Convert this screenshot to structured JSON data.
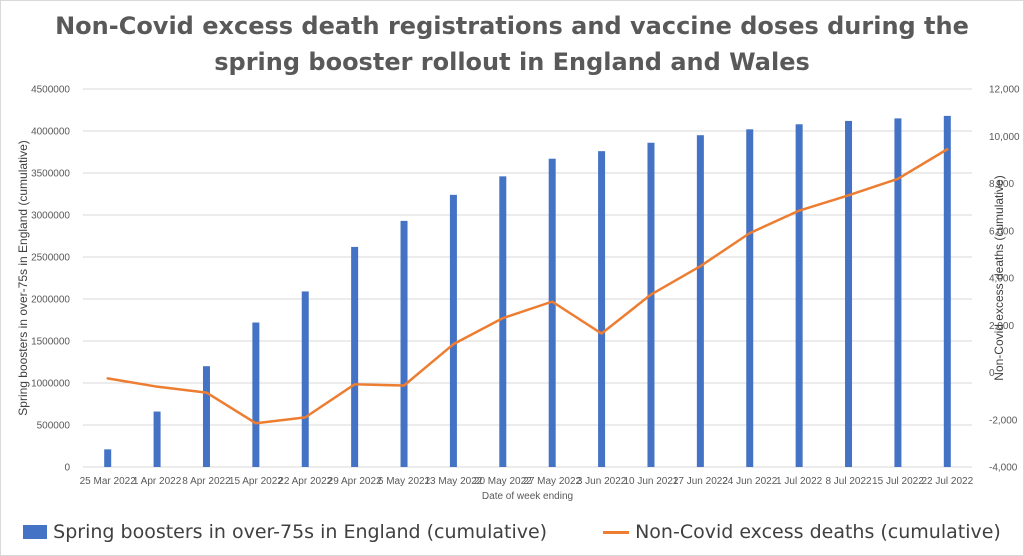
{
  "title_line1": "Non-Covid excess death registrations and vaccine doses during the",
  "title_line2": "spring booster rollout in England and Wales",
  "colors": {
    "bars": "#4472c4",
    "line": "#ed7d31",
    "grid": "#d9d9d9",
    "text": "#595959"
  },
  "chart_data": {
    "type": "bar+line",
    "title": "Non-Covid excess death registrations and vaccine doses during the spring booster rollout in England and Wales",
    "xlabel": "Date of week ending",
    "ylabel_left": "Spring boosters in over-75s in England (cumulative)",
    "ylabel_right": "Non-Covid excess deaths (cumulative)",
    "categories": [
      "25 Mar 2022",
      "1 Apr 2022",
      "8 Apr 2022",
      "15 Apr 2022",
      "22 Apr 2022",
      "29 Apr 2022",
      "6 May 2022",
      "13 May 2022",
      "20 May 2022",
      "27 May 2022",
      "3 Jun 2022",
      "10 Jun 2022",
      "17 Jun 2022",
      "24 Jun 2022",
      "1 Jul 2022",
      "8 Jul 2022",
      "15 Jul 2022",
      "22 Jul 2022"
    ],
    "left_axis": {
      "min": 0,
      "max": 4500000,
      "ticks": [
        "0",
        "500000",
        "1000000",
        "1500000",
        "2000000",
        "2500000",
        "3000000",
        "3500000",
        "4000000",
        "4500000"
      ]
    },
    "right_axis": {
      "min": -4000,
      "max": 12000,
      "ticks": [
        "-4,000",
        "-2,000",
        "0",
        "2,000",
        "4,000",
        "6,000",
        "8,000",
        "10,000",
        "12,000"
      ]
    },
    "grid": true,
    "legend_position": "bottom",
    "series": [
      {
        "name": "Spring boosters in over-75s in England (cumulative)",
        "type": "bar",
        "axis": "left",
        "values": [
          210000,
          660000,
          1200000,
          1720000,
          2090000,
          2620000,
          2930000,
          3240000,
          3460000,
          3670000,
          3760000,
          3860000,
          3950000,
          4020000,
          4080000,
          4120000,
          4150000,
          4180000
        ]
      },
      {
        "name": "Non-Covid excess deaths (cumulative)",
        "type": "line",
        "axis": "right",
        "values": [
          -250,
          -600,
          -850,
          -2150,
          -1900,
          -500,
          -550,
          1200,
          2300,
          3000,
          1650,
          3300,
          4500,
          5900,
          6850,
          7500,
          8200,
          9450
        ]
      }
    ]
  }
}
